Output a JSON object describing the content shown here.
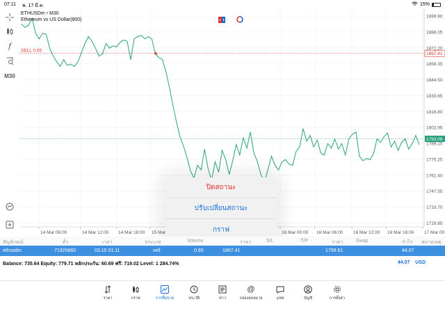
{
  "status_bar": {
    "time": "07:11",
    "date": "พ. 17 มี.ค.",
    "battery": "15%"
  },
  "left_toolbar": {
    "items": [
      {
        "name": "crosshair-icon"
      },
      {
        "name": "candle-type-icon"
      },
      {
        "name": "indicator-icon",
        "glyph": "f"
      },
      {
        "name": "objects-icon"
      },
      {
        "name": "timeframe",
        "label": "M30"
      }
    ]
  },
  "chart": {
    "symbol": "ETHUSDm",
    "separator": "•",
    "timeframe": "M30",
    "description": "Ethereum vs US Dollar(800)",
    "sell_line_label": "SELL 0.65",
    "sell_price_tag": "1867.41",
    "bid_price_tag": "1793.09",
    "y_labels": [
      "1899.90",
      "1886.05",
      "1872.20",
      "1858.35",
      "1844.50",
      "1830.65",
      "1816.80",
      "1802.95",
      "1789.10",
      "1775.25",
      "1761.40",
      "1747.55",
      "1733.70",
      "1719.85"
    ],
    "x_labels": [
      "14 Mar 06:00",
      "14 Mar 12:00",
      "14 Mar 18:00",
      "15 Mar 00:00",
      "16 Mar 00:00",
      "16 Mar 06:00",
      "16 Mar 12:00",
      "16 Mar 18:00",
      "17 Mar 00:00"
    ],
    "colors": {
      "line": "#26a17b",
      "sell": "#e0302a",
      "bid": "#26a17b",
      "grid": "#ececec"
    }
  },
  "chart_data": {
    "type": "line",
    "series": [
      {
        "values": [
          1893,
          1890,
          1892,
          1898,
          1885,
          1880,
          1885,
          1884,
          1872,
          1865,
          1860,
          1856,
          1862,
          1857,
          1858,
          1856,
          1860,
          1868,
          1876,
          1882,
          1878,
          1872,
          1865,
          1867,
          1876,
          1872,
          1874,
          1873,
          1877,
          1879,
          1878,
          1862,
          1880,
          1882,
          1883,
          1880,
          1882,
          1880,
          1867,
          1864,
          1862,
          1852,
          1838,
          1822,
          1808,
          1795,
          1787,
          1777,
          1765,
          1759,
          1770,
          1766,
          1784,
          1767,
          1757,
          1773,
          1764,
          1783,
          1775,
          1762,
          1774,
          1788,
          1779,
          1794,
          1785,
          1799,
          1781,
          1773,
          1762,
          1756,
          1766,
          1778,
          1770,
          1766,
          1773,
          1775,
          1771,
          1770,
          1782,
          1786,
          1802,
          1791,
          1796,
          1786,
          1792,
          1781,
          1779,
          1789,
          1785,
          1793,
          1784,
          1789,
          1779,
          1793,
          1797,
          1799,
          1778,
          1774,
          1776,
          1775,
          1780,
          1793,
          1790,
          1795,
          1798,
          1786,
          1791,
          1783,
          1790,
          1793,
          1784,
          1789,
          1796,
          1788
        ]
      }
    ],
    "ylim": [
      1716.5,
      1906
    ],
    "sell_level": 1867.41,
    "bid_level": 1793.09
  },
  "action_sheet": {
    "options": [
      {
        "label": "ปิดสถานะ",
        "color": "red"
      },
      {
        "label": "ปรับเปลี่ยนสถานะ",
        "color": "blue"
      },
      {
        "label": "กราฟ",
        "color": "blue"
      }
    ]
  },
  "positions_table": {
    "headers": [
      "สัญลักษณ์",
      "ตั๋ว",
      "เวลา",
      "ประเภท",
      "Volume",
      "ราคา",
      "S/L",
      "T/P",
      "ราคา",
      "Swap",
      "กำไร",
      "หมายเหตุ"
    ],
    "rows": [
      [
        "ethusdm",
        "71926860",
        "03.15 01:11",
        "sell",
        "0.65",
        "1867.41",
        "",
        "",
        "1799.61",
        "",
        "44.07",
        ""
      ]
    ]
  },
  "balance_bar": {
    "text": "Balance: 735.64 Equity: 779.71 หลักประกัน: 60.69 ฟรี: 719.02 Level: 1 284.74%",
    "profit": "44.07",
    "currency": "USD"
  },
  "tab_bar": {
    "tabs": [
      {
        "label": "ราคา",
        "icon": "quotes-icon"
      },
      {
        "label": "กราฟ",
        "icon": "chart-icon"
      },
      {
        "label": "การซื้อขาย",
        "icon": "trade-icon",
        "active": true
      },
      {
        "label": "ประวัติ",
        "icon": "history-icon"
      },
      {
        "label": "ข่าว",
        "icon": "news-icon"
      },
      {
        "label": "กล่องจดหมาย",
        "icon": "mailbox-icon"
      },
      {
        "label": "แชท",
        "icon": "chat-icon"
      },
      {
        "label": "บัญชี",
        "icon": "account-icon"
      },
      {
        "label": "การตั้งค่า",
        "icon": "settings-icon"
      }
    ]
  }
}
